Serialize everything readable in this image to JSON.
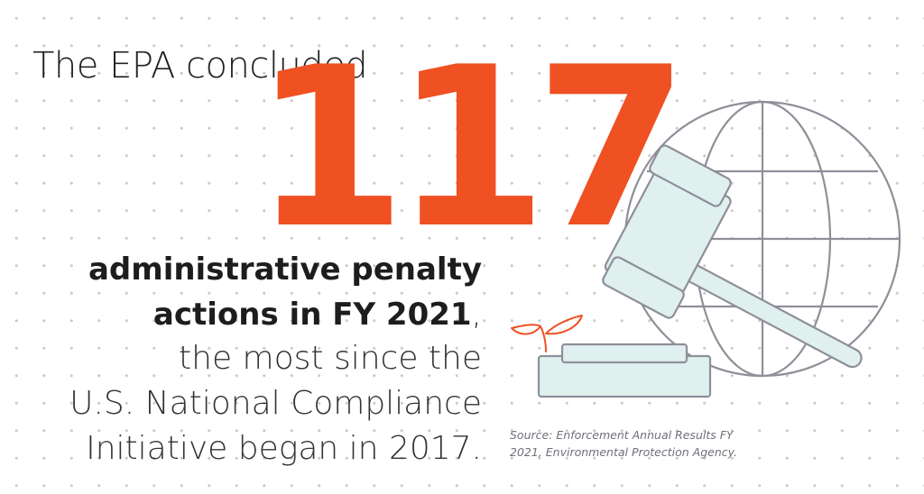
{
  "headline": {
    "intro": "The EPA concluded",
    "number": "117",
    "bold_line_1": "administrative penalty",
    "bold_line_2": "actions in FY 2021",
    "comma": ",",
    "light_line_1": "the most since the",
    "light_line_2": "U.S. National Compliance",
    "light_line_3": "Initiative began in 2017."
  },
  "source": {
    "line_1": "Source: Enforcement Annual Results FY",
    "line_2": "2021, Environmental Protection Agency."
  },
  "colors": {
    "accent": "#ef5123",
    "text": "#1d1d1d",
    "outline": "#8e8f99",
    "gavel_fill": "#dff0ee",
    "source_text": "#6f7078"
  },
  "icons": [
    "globe-icon",
    "gavel-icon",
    "sprout-icon"
  ]
}
